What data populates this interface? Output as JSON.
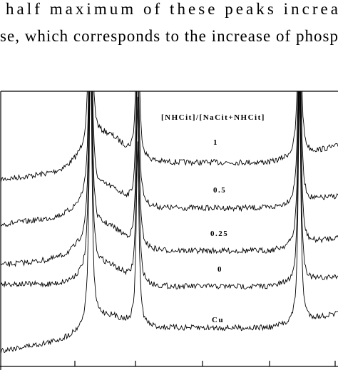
{
  "text": {
    "lines": [
      "half maximum of these peaks increa",
      "se, which corresponds to the increase of phosp"
    ]
  },
  "figure": {
    "legend_title": "[NHCit]/[NaCit+NHCit]",
    "trace_labels": [
      "1",
      "0.5",
      "0.25",
      "0",
      "Cu"
    ]
  }
}
